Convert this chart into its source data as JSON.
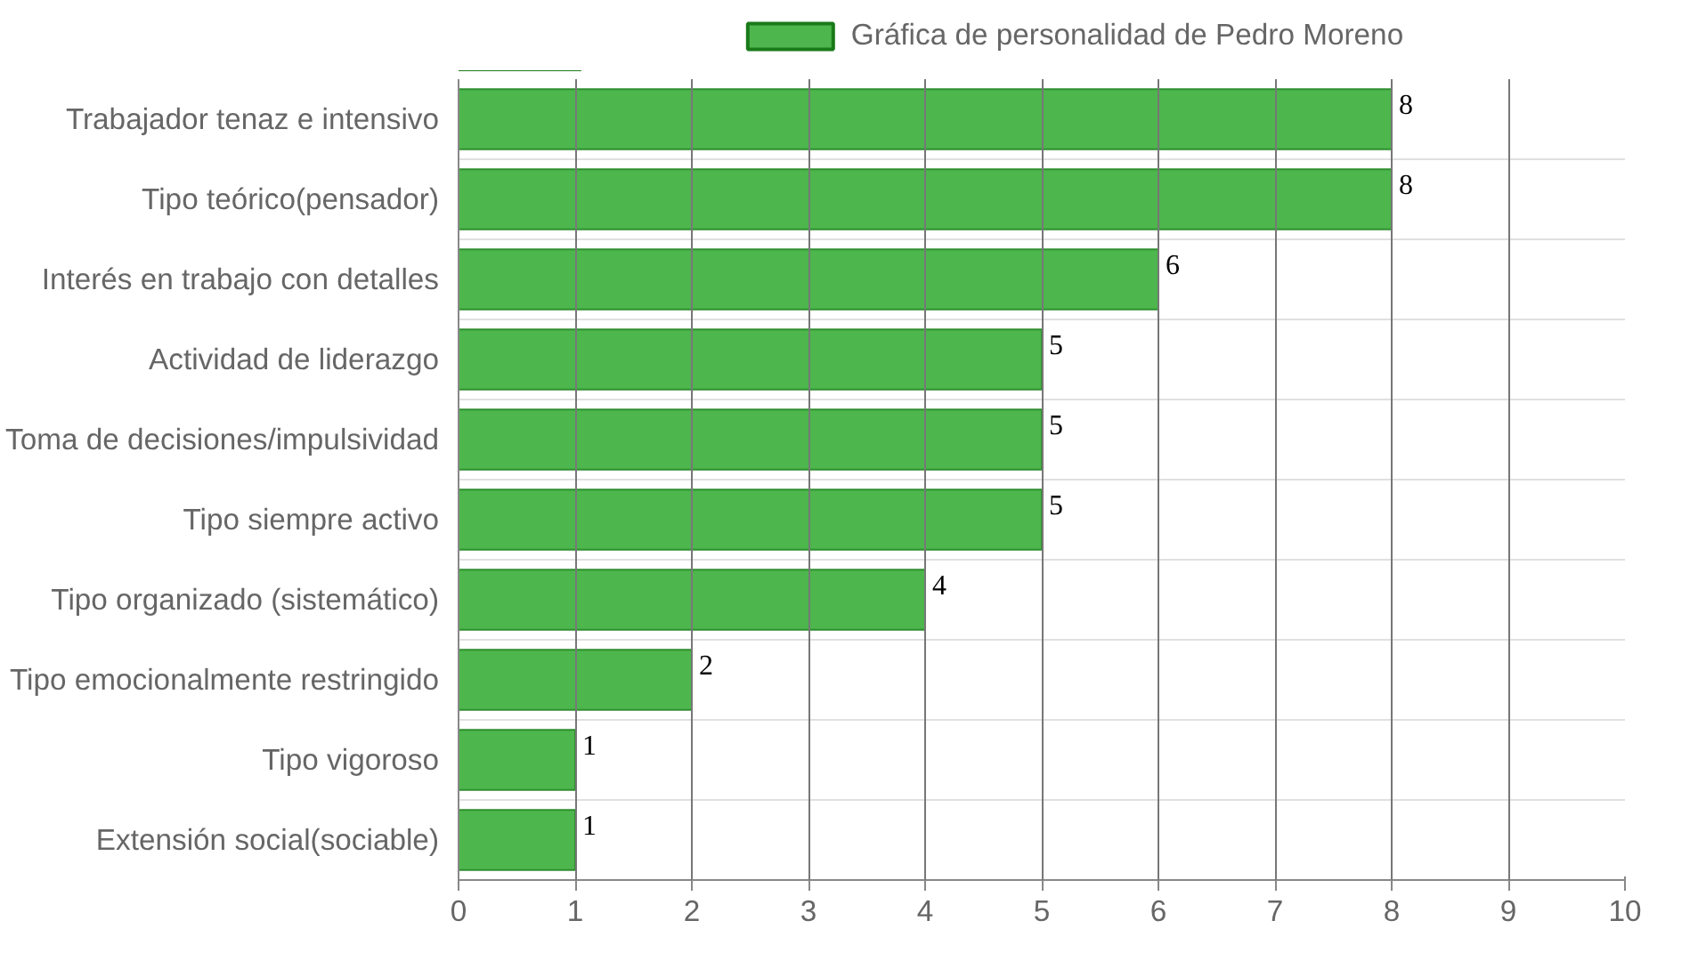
{
  "chart_data": {
    "type": "bar",
    "orientation": "horizontal",
    "categories": [
      "Trabajador tenaz e intensivo",
      "Tipo teórico(pensador)",
      "Interés en trabajo con detalles",
      "Actividad de liderazgo",
      "Toma de decisiones/impulsividad",
      "Tipo siempre activo",
      "Tipo organizado (sistemático)",
      "Tipo emocionalmente restringido",
      "Tipo vigoroso",
      "Extensión social(sociable)"
    ],
    "series": [
      {
        "name": "Gráfica de personalidad de Pedro Moreno",
        "color": "#4db64d",
        "values": [
          8,
          8,
          6,
          5,
          5,
          5,
          4,
          2,
          1,
          1
        ]
      }
    ],
    "xlim": [
      0,
      10
    ],
    "xticks": [
      0,
      1,
      2,
      3,
      4,
      5,
      6,
      7,
      8,
      9,
      10
    ],
    "grid": true,
    "legend": "top",
    "data_labels": true
  }
}
